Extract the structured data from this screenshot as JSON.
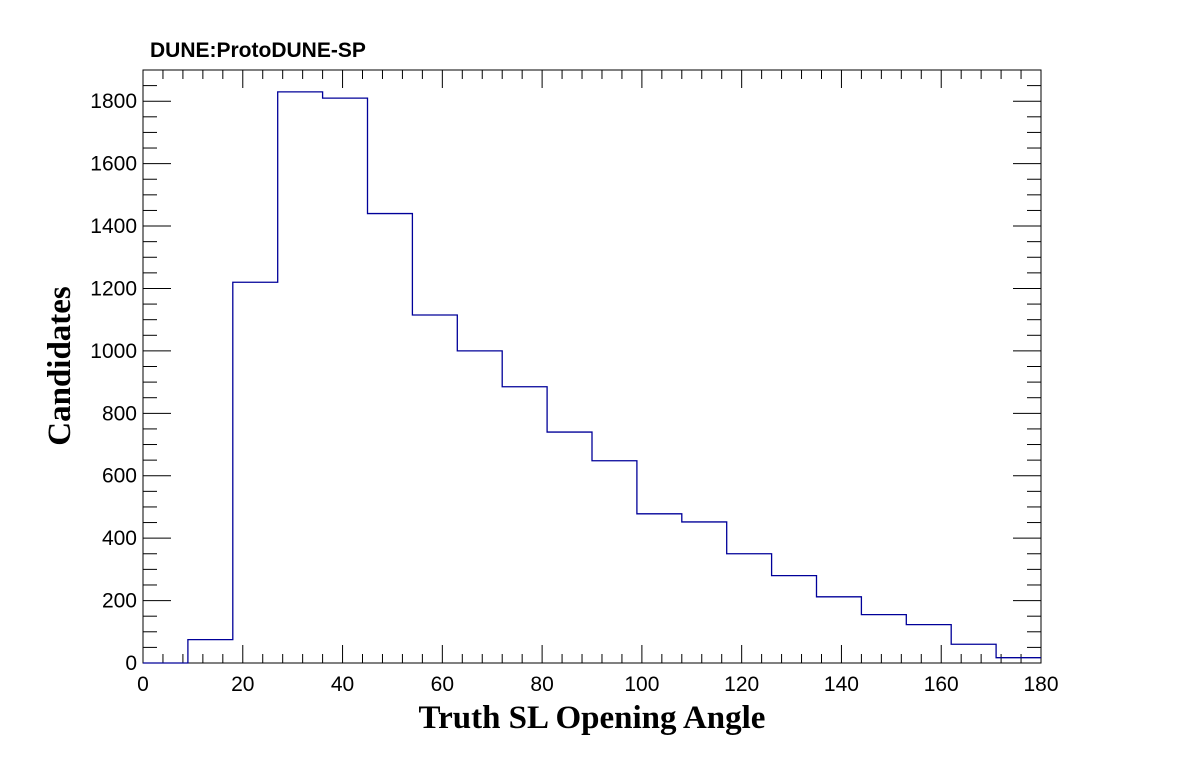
{
  "chart_data": {
    "type": "bar",
    "title": "DUNE:ProtoDUNE-SP",
    "xlabel": "Truth SL Opening Angle",
    "ylabel": "Candidates",
    "xlim": [
      0,
      180
    ],
    "ylim": [
      0,
      1900
    ],
    "bin_width": 9,
    "x_ticks": [
      "0",
      "20",
      "40",
      "60",
      "80",
      "100",
      "120",
      "140",
      "160",
      "180"
    ],
    "y_ticks": [
      "0",
      "200",
      "400",
      "600",
      "800",
      "1000",
      "1200",
      "1400",
      "1600",
      "1800"
    ],
    "bin_low_edges": [
      0,
      9,
      18,
      27,
      36,
      45,
      54,
      63,
      72,
      81,
      90,
      99,
      108,
      117,
      126,
      135,
      144,
      153,
      162,
      171
    ],
    "values": [
      0,
      75,
      1220,
      1830,
      1810,
      1440,
      1115,
      1000,
      885,
      740,
      648,
      478,
      452,
      350,
      280,
      212,
      155,
      123,
      60,
      17
    ],
    "line_color": "#000099",
    "grid": false
  }
}
